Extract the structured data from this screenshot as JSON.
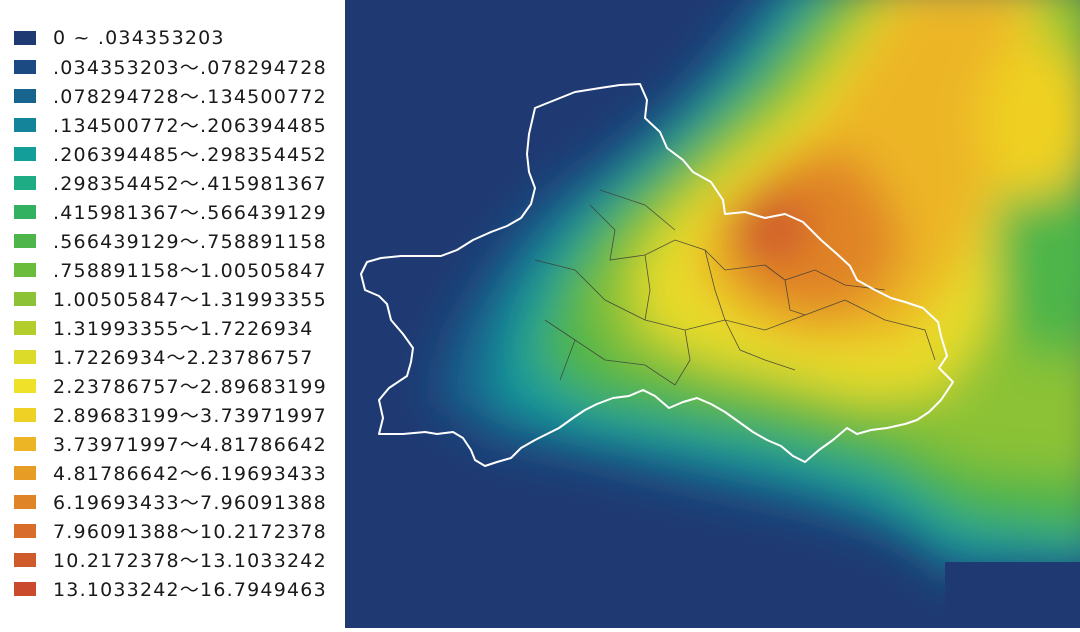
{
  "legend": {
    "items": [
      {
        "label": "0 ~ .034353203",
        "color": "#1f3a73"
      },
      {
        "label": ".034353203～.078294728",
        "color": "#1b4a82"
      },
      {
        "label": ".078294728～.134500772",
        "color": "#17658f"
      },
      {
        "label": ".134500772～.206394485",
        "color": "#13849a"
      },
      {
        "label": ".206394485～.298354452",
        "color": "#139e9a"
      },
      {
        "label": ".298354452～.415981367",
        "color": "#1dac84"
      },
      {
        "label": ".415981367～.566439129",
        "color": "#32b160"
      },
      {
        "label": ".566439129～.758891158",
        "color": "#4db54a"
      },
      {
        "label": ".758891158～1.00505847",
        "color": "#6bbb3d"
      },
      {
        "label": "1.00505847～1.31993355",
        "color": "#8cc235"
      },
      {
        "label": "1.31993355～1.7226934",
        "color": "#b3cd2c"
      },
      {
        "label": "1.7226934～2.23786757",
        "color": "#dcdb29"
      },
      {
        "label": "2.23786757～2.89683199",
        "color": "#efe12a"
      },
      {
        "label": "2.89683199～3.73971997",
        "color": "#efd024"
      },
      {
        "label": "3.73971997～4.81786642",
        "color": "#ecb526"
      },
      {
        "label": "4.81786642～6.19693433",
        "color": "#e79c26"
      },
      {
        "label": "6.19693433～7.96091388",
        "color": "#e08428"
      },
      {
        "label": "7.96091388～10.2172378",
        "color": "#d86c2b"
      },
      {
        "label": "10.2172378～13.1033242",
        "color": "#cf5a2c"
      },
      {
        "label": "13.1033242～16.7949463",
        "color": "#c94a2c"
      }
    ]
  },
  "map": {
    "background_color": "#1f3a73",
    "boundary_color": "#ffffff",
    "district_line_color": "#3a3a3a"
  }
}
